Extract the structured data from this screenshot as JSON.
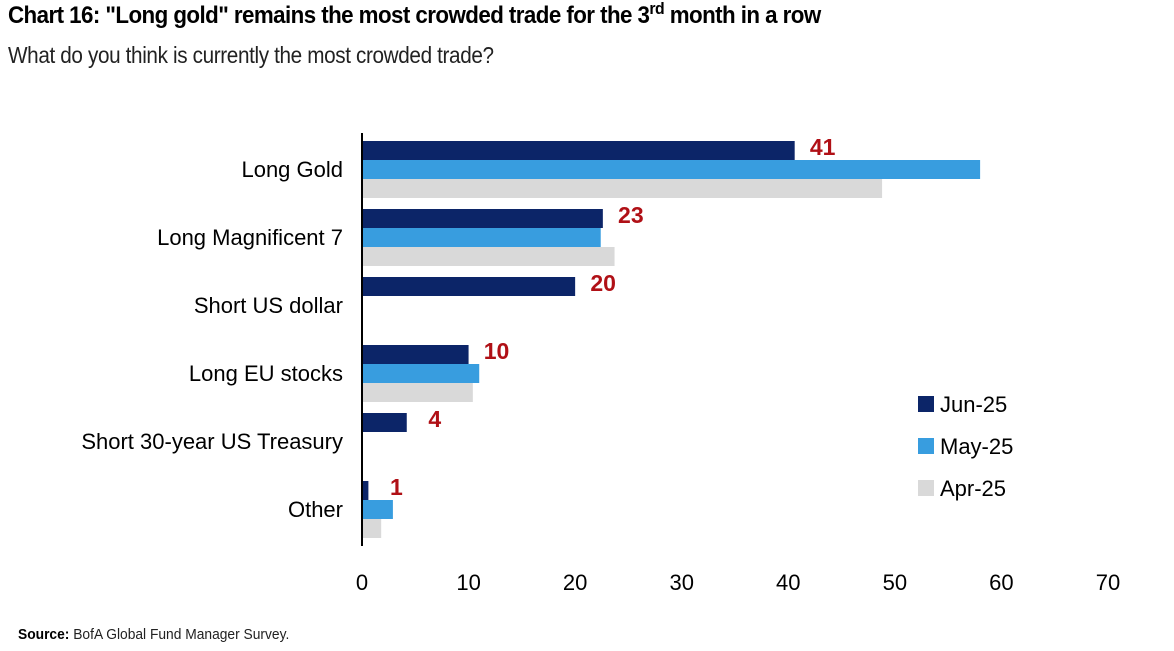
{
  "header": {
    "title_main": "Chart 16: \"Long gold\" remains the most crowded trade for the 3",
    "title_sup": "rd",
    "title_tail": " month in a row",
    "subtitle": "What do you think is currently the most crowded trade?"
  },
  "footer": {
    "source_label": "Source:",
    "source_text": " BofA Global Fund Manager Survey."
  },
  "chart_data": {
    "type": "bar",
    "orientation": "horizontal",
    "title": "Chart 16: \"Long gold\" remains the most crowded trade for the 3rd month in a row",
    "subtitle": "What do you think is currently the most crowded trade?",
    "xlabel": "",
    "ylabel": "",
    "categories": [
      "Long Gold",
      "Long Magnificent 7",
      "Short US dollar",
      "Long EU stocks",
      "Short 30-year US Treasury",
      "Other"
    ],
    "series": [
      {
        "name": "Jun-25",
        "color": "#0c2568",
        "values": [
          40.6,
          22.6,
          20,
          10,
          4.2,
          0.6
        ]
      },
      {
        "name": "May-25",
        "color": "#389ddf",
        "values": [
          58,
          22.4,
          null,
          11,
          null,
          2.9
        ]
      },
      {
        "name": "Apr-25",
        "color": "#d9d9d9",
        "values": [
          48.8,
          23.7,
          null,
          10.4,
          null,
          1.8
        ]
      }
    ],
    "data_labels": {
      "series": "Jun-25",
      "color": "#b01016",
      "values": [
        "41",
        "23",
        "20",
        "10",
        "4",
        "1"
      ]
    },
    "xlim": [
      0,
      70
    ],
    "xticks": [
      0,
      10,
      20,
      30,
      40,
      50,
      60,
      70
    ],
    "grid": false,
    "legend": {
      "position": "bottom-right",
      "entries": [
        "Jun-25",
        "May-25",
        "Apr-25"
      ]
    },
    "source": "BofA Global Fund Manager Survey."
  }
}
